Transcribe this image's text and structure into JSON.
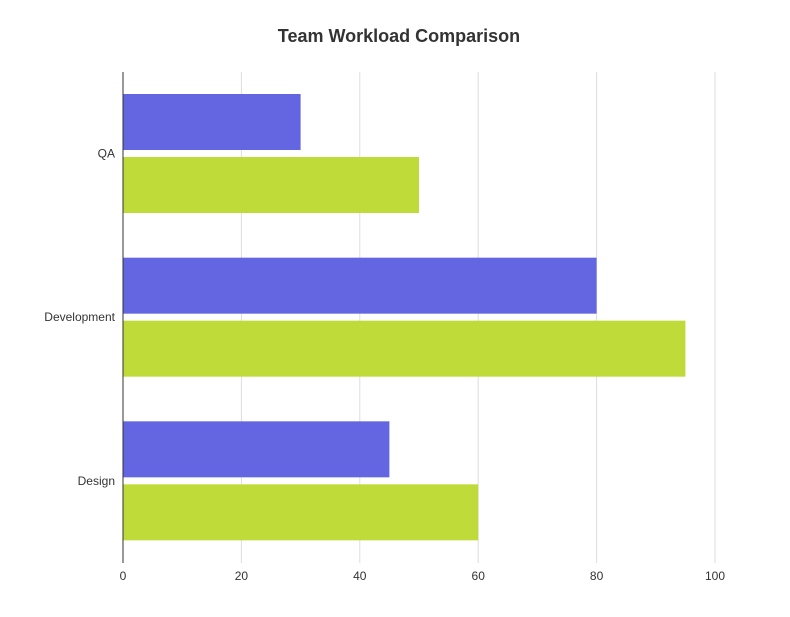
{
  "chart_data": {
    "type": "bar",
    "orientation": "horizontal",
    "title": "Team Workload Comparison",
    "xlabel": "",
    "ylabel": "",
    "categories": [
      "Design",
      "Development",
      "QA"
    ],
    "series": [
      {
        "values": [
          45,
          80,
          30
        ],
        "color": "#6366e0"
      },
      {
        "values": [
          60,
          95,
          50
        ],
        "color": "#bedb39"
      }
    ],
    "xlim": [
      0,
      100
    ],
    "xticks": [
      "0",
      "20",
      "40",
      "60",
      "80",
      "100"
    ],
    "grid": true,
    "legend": "none"
  }
}
